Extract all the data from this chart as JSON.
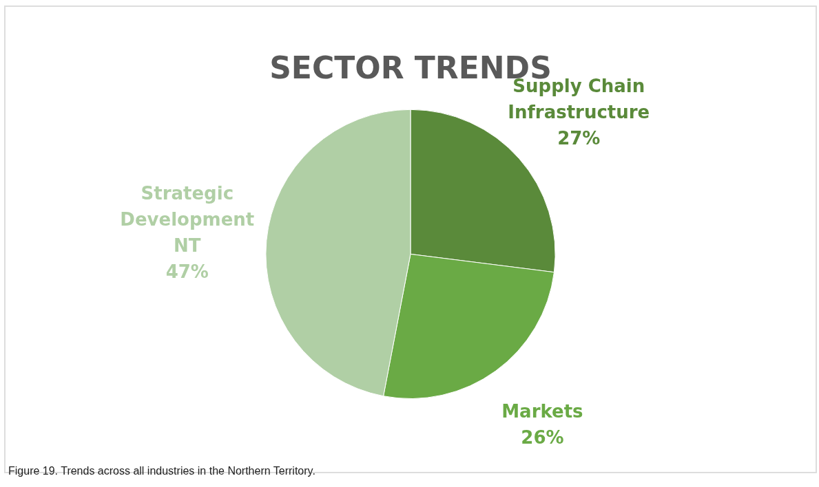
{
  "chart_data": {
    "type": "pie",
    "title": "SECTOR TRENDS",
    "categories": [
      "Supply Chain Infrastructure",
      "Markets",
      "Strategic Development NT"
    ],
    "values": [
      27,
      26,
      47
    ],
    "colors": [
      "#5a8a3a",
      "#6aaa45",
      "#b0cfa5"
    ],
    "value_labels": [
      "27%",
      "26%",
      "47%"
    ],
    "annotations": [
      "Figure 19. Trends across all industries in the Northern Territory."
    ]
  }
}
